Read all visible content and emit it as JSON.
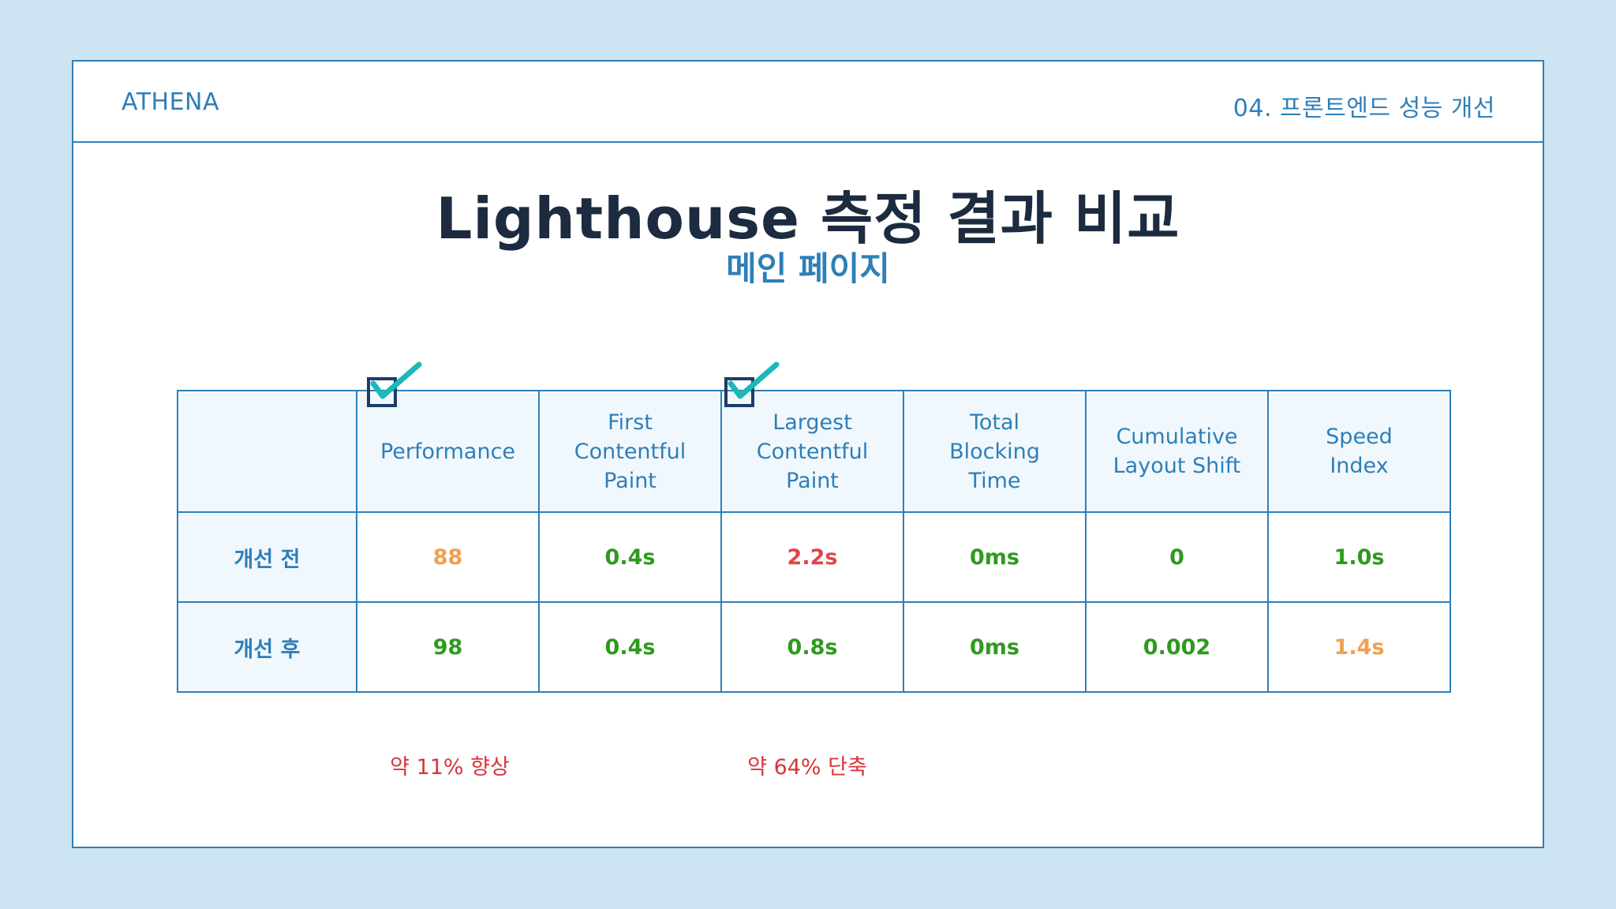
{
  "header": {
    "brand": "ATHENA",
    "section": "04. 프론트엔드 성능 개선"
  },
  "title": "Lighthouse 측정 결과 비교",
  "subtitle": "메인 페이지",
  "table": {
    "columns": [
      "",
      "Performance",
      "First Contentful Paint",
      "Largest Contentful Paint",
      "Total Blocking Time",
      "Cumulative Layout Shift",
      "Speed Index"
    ],
    "rows": [
      {
        "label": "개선 전",
        "values": [
          "88",
          "0.4s",
          "2.2s",
          "0ms",
          "0",
          "1.0s"
        ],
        "colors": [
          "#f0a050",
          "#2e9a1e",
          "#e0454a",
          "#2e9a1e",
          "#2e9a1e",
          "#2e9a1e"
        ]
      },
      {
        "label": "개선 후",
        "values": [
          "98",
          "0.4s",
          "0.8s",
          "0ms",
          "0.002",
          "1.4s"
        ],
        "colors": [
          "#2e9a1e",
          "#2e9a1e",
          "#2e9a1e",
          "#2e9a1e",
          "#2e9a1e",
          "#f0a050"
        ]
      }
    ]
  },
  "notes": {
    "performance": "약 11% 향상",
    "lcp": "약 64% 단축"
  },
  "colors": {
    "accent": "#2e7fb8",
    "check": "#1cb8b8",
    "good": "#2e9a1e",
    "average": "#f0a050",
    "poor": "#e0454a"
  },
  "icons": [
    "checkbox-checked-icon"
  ]
}
